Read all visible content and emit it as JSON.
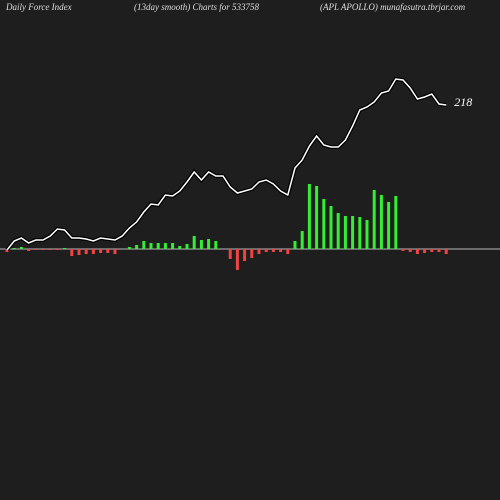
{
  "chart_data": {
    "type": "bar",
    "title": "Daily Force  Index",
    "subtitle": "(13day smooth) Charts for 533758",
    "source": "(APL APOLLO) munafasutra.tbrjar.com",
    "ylim": [
      -251,
      249
    ],
    "y2lim": [
      20.5,
      270.5
    ],
    "series": [
      {
        "type": "bar",
        "up_color": "#33ee33",
        "down_color": "#ee4444",
        "values": [
          -3,
          1,
          2,
          -2,
          -1,
          -1,
          -1,
          -1,
          1,
          -7,
          -6,
          -5,
          -5,
          -4,
          -4,
          -5,
          0,
          2,
          4,
          8,
          6,
          6,
          6,
          6,
          3,
          5,
          13,
          9,
          10,
          8,
          0,
          -10,
          -21,
          -12,
          -9,
          -5,
          -3,
          -3,
          -3,
          -5,
          8,
          18,
          65,
          63,
          50,
          43,
          36,
          33,
          33,
          32,
          29,
          59,
          54,
          47,
          53,
          -2,
          -3,
          -5,
          -4,
          -3,
          -3,
          -5
        ]
      },
      {
        "type": "line",
        "color": "#ffffff",
        "axis": "y2",
        "values": [
          145.5,
          150,
          151.5,
          149,
          150.5,
          150.5,
          152.5,
          156,
          155.5,
          151.5,
          151.5,
          151,
          150,
          151.5,
          151,
          150.5,
          152.5,
          156.5,
          159.5,
          164.5,
          168.5,
          168,
          173,
          172.5,
          175,
          179.5,
          184.5,
          180.5,
          184.5,
          182.5,
          182.5,
          177,
          174,
          175,
          176,
          179.5,
          180.5,
          178.5,
          175,
          173,
          186.5,
          190.5,
          197.5,
          202.5,
          198,
          197,
          197,
          200.5,
          207.5,
          215.5,
          217,
          219.5,
          224,
          225,
          231,
          230.5,
          226.5,
          221,
          222,
          223.5,
          218.5,
          218
        ]
      }
    ]
  }
}
